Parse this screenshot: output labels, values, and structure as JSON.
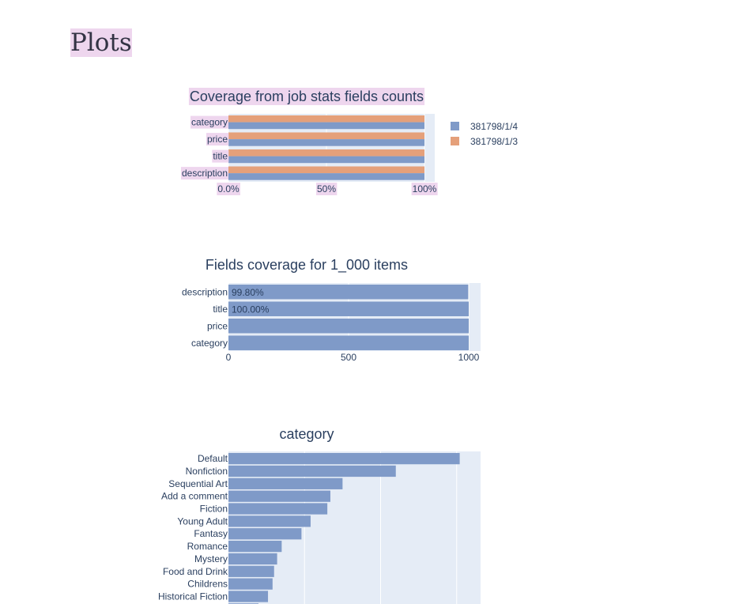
{
  "page": {
    "title": "Plots"
  },
  "chart_data": [
    {
      "type": "bar",
      "orientation": "horizontal",
      "title": "Coverage from job stats fields counts",
      "categories": [
        "category",
        "price",
        "title",
        "description"
      ],
      "series": [
        {
          "name": "381798/1/4",
          "values": [
            100,
            100,
            100,
            100
          ],
          "color": "#7f9ac8"
        },
        {
          "name": "381798/1/3",
          "values": [
            100,
            100,
            100,
            100
          ],
          "color": "#e5a07a"
        }
      ],
      "xlim": [
        0,
        100
      ],
      "ticks": [
        0,
        50,
        100
      ],
      "tick_labels": [
        "0.0%",
        "50%",
        "100%"
      ],
      "legend_position": "right"
    },
    {
      "type": "bar",
      "orientation": "horizontal",
      "title": "Fields coverage for 1_000 items",
      "categories": [
        "description",
        "title",
        "price",
        "category"
      ],
      "values": [
        998,
        1000,
        1000,
        1000
      ],
      "data_labels": [
        "99.80%",
        "100.00%",
        "",
        ""
      ],
      "xlim": [
        0,
        1000
      ],
      "ticks": [
        0,
        500,
        1000
      ],
      "tick_labels": [
        "0",
        "500",
        "1000"
      ],
      "color": "#7f9ac8"
    },
    {
      "type": "bar",
      "orientation": "horizontal",
      "title": "category",
      "categories": [
        "Default",
        "Nonfiction",
        "Sequential Art",
        "Add a comment",
        "Fiction",
        "Young Adult",
        "Fantasy",
        "Romance",
        "Mystery",
        "Food and Drink",
        "Childrens",
        "Historical Fiction"
      ],
      "values": [
        152,
        110,
        75,
        67,
        65,
        54,
        48,
        35,
        32,
        30,
        29,
        26
      ],
      "xlim": [
        0,
        160
      ],
      "color": "#7f9ac8"
    }
  ]
}
